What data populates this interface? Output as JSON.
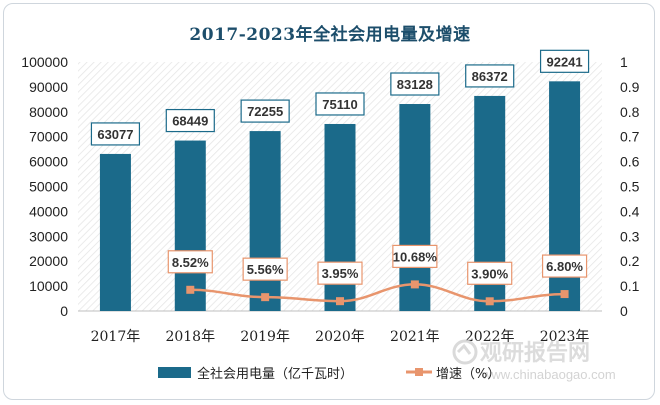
{
  "chart_data": {
    "type": "bar",
    "title": "2017-2023年全社会用电量及增速",
    "categories": [
      "2017年",
      "2018年",
      "2019年",
      "2020年",
      "2021年",
      "2022年",
      "2023年"
    ],
    "series": [
      {
        "name": "全社会用电量（亿千瓦时）",
        "type": "bar",
        "axis": "left",
        "color": "#1b6a8a",
        "values": [
          63077,
          68449,
          72255,
          75110,
          83128,
          86372,
          92241
        ],
        "labels": [
          "63077",
          "68449",
          "72255",
          "75110",
          "83128",
          "86372",
          "92241"
        ]
      },
      {
        "name": "增速（%）",
        "type": "line",
        "axis": "right",
        "color": "#e8956d",
        "values": [
          null,
          0.0852,
          0.0556,
          0.0395,
          0.1068,
          0.039,
          0.068
        ],
        "labels": [
          "",
          "8.52%",
          "5.56%",
          "3.95%",
          "10.68%",
          "3.90%",
          "6.80%"
        ]
      }
    ],
    "y_left": {
      "min": 0,
      "max": 100000,
      "step": 10000,
      "ticks": [
        "0",
        "10000",
        "20000",
        "30000",
        "40000",
        "50000",
        "60000",
        "70000",
        "80000",
        "90000",
        "100000"
      ]
    },
    "y_right": {
      "min": 0,
      "max": 1,
      "step": 0.1,
      "ticks": [
        "0",
        "0.1",
        "0.2",
        "0.3",
        "0.4",
        "0.5",
        "0.6",
        "0.7",
        "0.8",
        "0.9",
        "1"
      ]
    },
    "grid": false,
    "plot_background": "hatched",
    "legend_position": "bottom"
  },
  "watermark": {
    "text_cn": "观研报告网",
    "text_en": "www.chinabaogao.com"
  }
}
